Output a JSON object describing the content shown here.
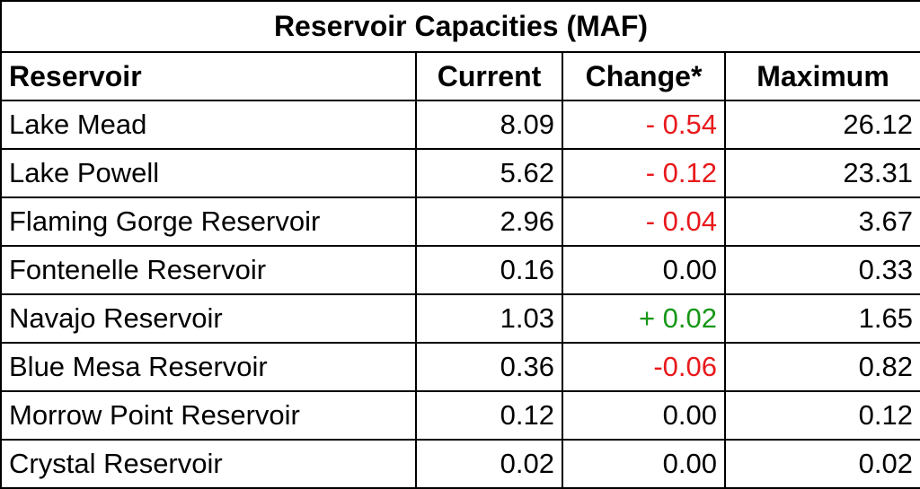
{
  "table": {
    "title": "Reservoir Capacities (MAF)",
    "headers": {
      "reservoir": "Reservoir",
      "current": "Current",
      "change": "Change*",
      "maximum": "Maximum"
    },
    "rows": [
      {
        "reservoir": "Lake Mead",
        "current": "8.09",
        "change": "- 0.54",
        "change_color": "#e8191c",
        "maximum": "26.12"
      },
      {
        "reservoir": "Lake Powell",
        "current": "5.62",
        "change": "- 0.12",
        "change_color": "#e8191c",
        "maximum": "23.31"
      },
      {
        "reservoir": "Flaming Gorge Reservoir",
        "current": "2.96",
        "change": "- 0.04",
        "change_color": "#e8191c",
        "maximum": "3.67"
      },
      {
        "reservoir": "Fontenelle Reservoir",
        "current": "0.16",
        "change": "0.00",
        "change_color": "#000000",
        "maximum": "0.33"
      },
      {
        "reservoir": "Navajo Reservoir",
        "current": "1.03",
        "change": "+ 0.02",
        "change_color": "#169716",
        "maximum": "1.65"
      },
      {
        "reservoir": "Blue Mesa Reservoir",
        "current": "0.36",
        "change": "-0.06",
        "change_color": "#e8191c",
        "maximum": "0.82"
      },
      {
        "reservoir": "Morrow Point Reservoir",
        "current": "0.12",
        "change": "0.00",
        "change_color": "#000000",
        "maximum": "0.12"
      },
      {
        "reservoir": "Crystal Reservoir",
        "current": "0.02",
        "change": "0.00",
        "change_color": "#000000",
        "maximum": "0.02"
      }
    ]
  }
}
